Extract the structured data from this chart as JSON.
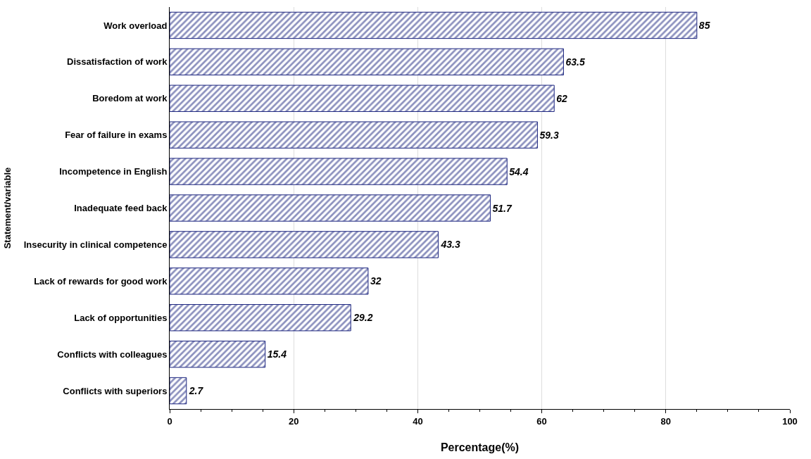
{
  "chart_data": {
    "type": "bar",
    "orientation": "horizontal",
    "xlabel": "Percentage(%)",
    "ylabel": "Statement/variable",
    "categories": [
      "Work overload",
      "Dissatisfaction of work",
      "Boredom at work",
      "Fear of failure in exams",
      "Incompetence in English",
      "Inadequate feed back",
      "Insecurity in clinical competence",
      "Lack of rewards for good work",
      "Lack of opportunities",
      "Conflicts with colleagues",
      "Conflicts with superiors"
    ],
    "values": [
      85,
      63.5,
      62,
      59.3,
      54.4,
      51.7,
      43.3,
      32,
      29.2,
      15.4,
      2.7
    ],
    "color": "#1a237e",
    "xlim": [
      0,
      100
    ],
    "xticks": [
      0,
      20,
      40,
      60,
      80,
      100
    ],
    "grid": "x",
    "data_labels": true
  }
}
